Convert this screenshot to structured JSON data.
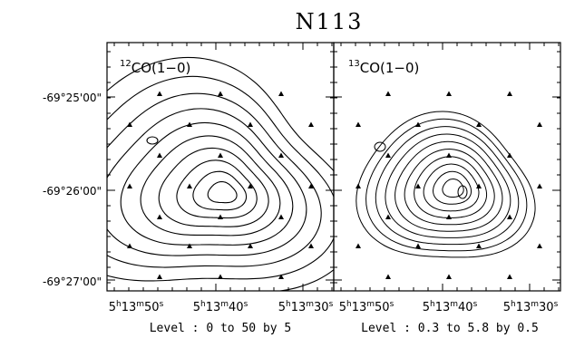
{
  "title": "N113",
  "y_axis": {
    "tick_labels": [
      "-69°25'00\"",
      "-69°26'00\"",
      "-69°27'00\""
    ]
  },
  "x_axis": {
    "tick_labels": [
      {
        "h": "5",
        "m": "13",
        "s": "50"
      },
      {
        "h": "5",
        "m": "13",
        "s": "40"
      },
      {
        "h": "5",
        "m": "13",
        "s": "30"
      }
    ]
  },
  "panels": [
    {
      "id": "12co",
      "label_prefix": "12",
      "label_main": "CO(1−0)",
      "level_text": "Level : 0 to 50 by 5"
    },
    {
      "id": "13co",
      "label_prefix": "13",
      "label_main": "CO(1−0)",
      "level_text": "Level : 0.3 to 5.8 by 0.5"
    }
  ],
  "colors": {
    "line": "#000000",
    "background": "#ffffff"
  },
  "marker_icon": "filled-triangle"
}
